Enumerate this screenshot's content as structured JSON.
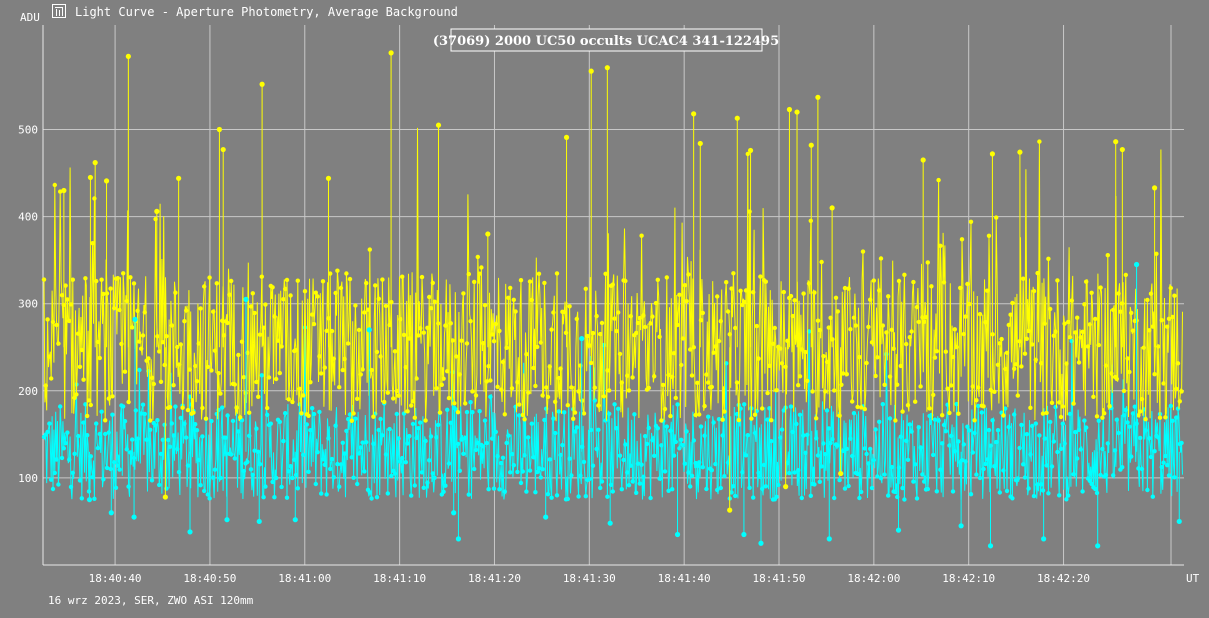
{
  "window": {
    "title": "Light Curve - Aperture Photometry, Average Background",
    "icon": "light-curve-icon"
  },
  "footer": {
    "info": "16 wrz 2023, SER, ZWO ASI 120mm"
  },
  "colors": {
    "background": "#808080",
    "grid": "#c8c8c8",
    "target": "#ffff00",
    "comparison": "#00ffff"
  },
  "chart_data": {
    "type": "line",
    "title": "(37069) 2000 UC50 occults UCAC4 341-122495",
    "ylabel": "ADU",
    "xlabel": "UT",
    "ylim": [
      0,
      620
    ],
    "xlim": [
      "18:40:32.4",
      "18:42:32.7"
    ],
    "y_ticks": [
      100,
      200,
      300,
      400,
      500
    ],
    "x_ticks": [
      "18:40:40",
      "18:40:50",
      "18:41:00",
      "18:41:10",
      "18:41:20",
      "18:41:30",
      "18:41:40",
      "18:41:50",
      "18:42:00",
      "18:42:10",
      "18:42:20"
    ],
    "grid": true,
    "series": [
      {
        "role": "target star (yellow)",
        "color": "#ffff00",
        "points": [
          [
            "18:40:34.6",
            430
          ],
          [
            "18:40:37.4",
            445
          ],
          [
            "18:40:37.9",
            462
          ],
          [
            "18:40:39.1",
            441
          ],
          [
            "18:40:41.4",
            584
          ],
          [
            "18:40:44.4",
            406
          ],
          [
            "18:40:46.7",
            444
          ],
          [
            "18:40:51.0",
            500
          ],
          [
            "18:40:51.4",
            477
          ],
          [
            "18:40:55.5",
            552
          ],
          [
            "18:41:02.5",
            444
          ],
          [
            "18:41:09.1",
            588
          ],
          [
            "18:41:14.1",
            505
          ],
          [
            "18:41:19.3",
            380
          ],
          [
            "18:41:27.6",
            491
          ],
          [
            "18:41:30.2",
            567
          ],
          [
            "18:41:31.9",
            571
          ],
          [
            "18:41:41.0",
            518
          ],
          [
            "18:41:41.7",
            484
          ],
          [
            "18:41:45.6",
            513
          ],
          [
            "18:41:47.0",
            476
          ],
          [
            "18:41:51.1",
            523
          ],
          [
            "18:41:51.9",
            520
          ],
          [
            "18:41:53.4",
            482
          ],
          [
            "18:41:54.1",
            537
          ],
          [
            "18:41:55.6",
            410
          ],
          [
            "18:42:05.2",
            465
          ],
          [
            "18:42:12.5",
            472
          ],
          [
            "18:42:15.4",
            474
          ],
          [
            "18:42:25.5",
            486
          ],
          [
            "18:42:26.2",
            477
          ],
          [
            "18:42:29.6",
            433
          ],
          [
            "18:40:45.3",
            78
          ],
          [
            "18:41:44.8",
            63
          ],
          [
            "18:41:50.7",
            90
          ],
          [
            "18:41:56.5",
            105
          ]
        ]
      },
      {
        "role": "comparison star (cyan)",
        "color": "#00ffff",
        "points": [
          [
            "18:40:37.3",
            75
          ],
          [
            "18:40:39.6",
            60
          ],
          [
            "18:40:42.0",
            55
          ],
          [
            "18:40:47.9",
            38
          ],
          [
            "18:40:51.8",
            52
          ],
          [
            "18:40:55.2",
            50
          ],
          [
            "18:40:59.0",
            52
          ],
          [
            "18:41:15.7",
            60
          ],
          [
            "18:41:16.2",
            30
          ],
          [
            "18:41:25.4",
            55
          ],
          [
            "18:41:32.2",
            48
          ],
          [
            "18:41:39.3",
            35
          ],
          [
            "18:41:46.3",
            35
          ],
          [
            "18:41:48.1",
            25
          ],
          [
            "18:41:55.3",
            30
          ],
          [
            "18:42:02.6",
            40
          ],
          [
            "18:42:09.2",
            45
          ],
          [
            "18:42:12.3",
            22
          ],
          [
            "18:42:17.9",
            30
          ],
          [
            "18:42:23.6",
            22
          ],
          [
            "18:42:32.2",
            50
          ],
          [
            "18:40:42.1",
            282
          ],
          [
            "18:40:53.8",
            305
          ],
          [
            "18:41:06.8",
            270
          ],
          [
            "18:41:29.2",
            260
          ],
          [
            "18:42:27.7",
            345
          ]
        ]
      }
    ]
  }
}
